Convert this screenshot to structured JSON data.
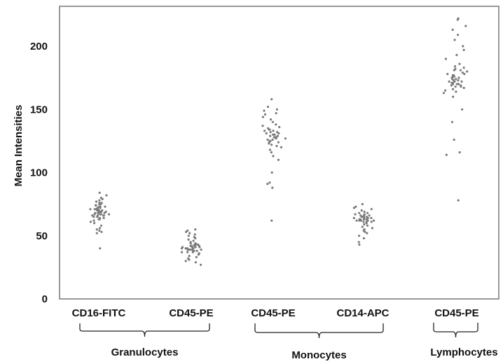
{
  "chart_data": {
    "type": "scatter",
    "ylabel": "Mean Intensities",
    "xlabel": "",
    "title": "",
    "ylim": [
      0,
      225
    ],
    "yticks": [
      0,
      50,
      100,
      150,
      200
    ],
    "grid": false,
    "categories": [
      "CD16-FITC",
      "CD45-PE",
      "CD45-PE",
      "CD14-APC",
      "CD45-PE"
    ],
    "groups": [
      {
        "label": "Granulocytes",
        "categories": [
          0,
          1
        ]
      },
      {
        "label": "Monocytes",
        "categories": [
          2,
          3
        ]
      },
      {
        "label": "Lymphocytes",
        "categories": [
          4
        ]
      }
    ],
    "series": [
      {
        "category": 0,
        "values": [
          84,
          82,
          80,
          79,
          78,
          77,
          76,
          76,
          75,
          75,
          74,
          74,
          73,
          73,
          73,
          72,
          72,
          72,
          71,
          71,
          71,
          71,
          70,
          70,
          70,
          70,
          70,
          69,
          69,
          69,
          69,
          69,
          68,
          68,
          68,
          68,
          68,
          67,
          67,
          67,
          67,
          66,
          66,
          66,
          66,
          65,
          65,
          65,
          64,
          64,
          63,
          63,
          62,
          61,
          60,
          58,
          56,
          55,
          54,
          53,
          52,
          40
        ]
      },
      {
        "category": 1,
        "values": [
          55,
          54,
          53,
          52,
          51,
          50,
          49,
          48,
          47,
          46,
          45,
          44,
          44,
          43,
          43,
          43,
          42,
          42,
          42,
          42,
          41,
          41,
          41,
          41,
          41,
          40,
          40,
          40,
          40,
          40,
          40,
          39,
          39,
          39,
          39,
          39,
          39,
          38,
          38,
          38,
          38,
          37,
          37,
          37,
          36,
          36,
          35,
          34,
          33,
          32,
          31,
          30,
          29,
          27
        ]
      },
      {
        "category": 2,
        "values": [
          158,
          152,
          150,
          149,
          147,
          146,
          144,
          142,
          140,
          138,
          137,
          136,
          135,
          134,
          134,
          133,
          133,
          132,
          132,
          131,
          131,
          130,
          130,
          130,
          129,
          129,
          128,
          128,
          128,
          127,
          127,
          126,
          126,
          125,
          125,
          124,
          124,
          123,
          122,
          121,
          120,
          118,
          116,
          113,
          110,
          100,
          92,
          91,
          88,
          62
        ]
      },
      {
        "category": 3,
        "values": [
          75,
          73,
          72,
          71,
          70,
          69,
          68,
          68,
          67,
          67,
          66,
          66,
          66,
          65,
          65,
          65,
          65,
          64,
          64,
          64,
          64,
          63,
          63,
          63,
          63,
          63,
          62,
          62,
          62,
          62,
          62,
          61,
          61,
          61,
          60,
          60,
          59,
          58,
          57,
          56,
          55,
          54,
          53,
          52,
          50,
          48,
          45,
          43
        ]
      },
      {
        "category": 4,
        "values": [
          222,
          221,
          216,
          213,
          209,
          205,
          200,
          197,
          193,
          190,
          186,
          184,
          183,
          182,
          181,
          181,
          180,
          179,
          178,
          178,
          177,
          177,
          176,
          176,
          176,
          175,
          175,
          174,
          174,
          173,
          173,
          172,
          172,
          172,
          171,
          171,
          170,
          170,
          170,
          169,
          169,
          168,
          168,
          167,
          166,
          165,
          164,
          163,
          160,
          150,
          140,
          126,
          116,
          114,
          78
        ]
      }
    ],
    "colors": {
      "point": "#7a7a7a",
      "axis": "#7f7f7f",
      "text": "#111111"
    }
  }
}
